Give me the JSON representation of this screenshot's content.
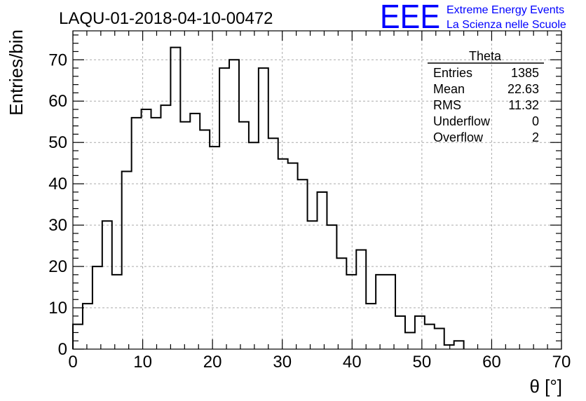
{
  "chart_data": {
    "type": "bar",
    "title": "LAQU-01-2018-04-10-00472",
    "xlabel": "θ [°]",
    "ylabel": "Entries/bin",
    "xlim": [
      0,
      70
    ],
    "ylim": [
      0,
      77
    ],
    "grid": true,
    "bin_edges": [
      0,
      1.4,
      2.8,
      4.2,
      5.6,
      7.0,
      8.4,
      9.8,
      11.2,
      12.6,
      14.0,
      15.4,
      16.8,
      18.2,
      19.6,
      21.0,
      22.4,
      23.8,
      25.2,
      26.6,
      28.0,
      29.4,
      30.8,
      32.2,
      33.6,
      35.0,
      36.4,
      37.8,
      39.2,
      40.6,
      42.0,
      43.4,
      44.8,
      46.2,
      47.6,
      49.0,
      50.4,
      51.8,
      53.2,
      54.6,
      56.0
    ],
    "values": [
      6,
      11,
      20,
      31,
      18,
      43,
      56,
      58,
      56,
      59,
      73,
      55,
      57,
      53,
      49,
      68,
      70,
      55,
      50,
      68,
      51,
      46,
      45,
      41,
      31,
      38,
      30,
      22,
      18,
      24,
      11,
      18,
      18,
      8,
      4,
      8,
      6,
      5,
      1,
      2
    ],
    "x_ticks": [
      "0",
      "10",
      "20",
      "30",
      "40",
      "50",
      "60",
      "70"
    ],
    "x_tick_values": [
      0,
      10,
      20,
      30,
      40,
      50,
      60,
      70
    ],
    "y_ticks": [
      "0",
      "10",
      "20",
      "30",
      "40",
      "50",
      "60",
      "70"
    ],
    "y_tick_values": [
      0,
      10,
      20,
      30,
      40,
      50,
      60,
      70
    ],
    "stats_box": {
      "title": "Theta",
      "rows": [
        {
          "label": "Entries",
          "value": "1385"
        },
        {
          "label": "Mean",
          "value": "22.63"
        },
        {
          "label": "RMS",
          "value": "11.32"
        },
        {
          "label": "Underflow",
          "value": "0"
        },
        {
          "label": "Overflow",
          "value": "2"
        }
      ],
      "placement": "top-right"
    }
  },
  "logo": {
    "text": "EEE",
    "line1": "Extreme Energy Events",
    "line2": "La Scienza nelle Scuole",
    "color": "#0000ff"
  }
}
